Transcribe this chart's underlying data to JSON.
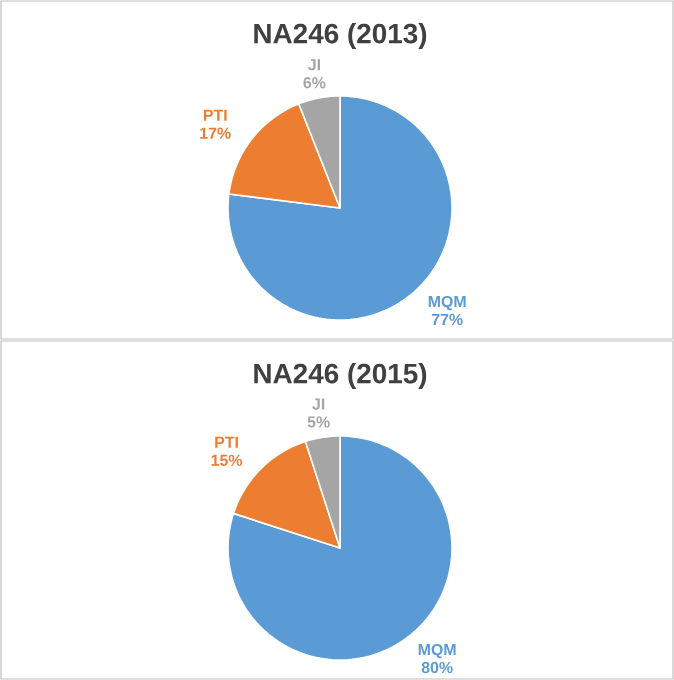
{
  "chart_data": [
    {
      "type": "pie",
      "title": "NA246 (2013)",
      "categories": [
        "MQM",
        "PTI",
        "JI"
      ],
      "values": [
        77,
        17,
        6
      ],
      "value_labels": [
        "77%",
        "17%",
        "6%"
      ],
      "colors": [
        "#5b9bd5",
        "#ed7d31",
        "#a5a5a5"
      ]
    },
    {
      "type": "pie",
      "title": "NA246 (2015)",
      "categories": [
        "MQM",
        "PTI",
        "JI"
      ],
      "values": [
        80,
        15,
        5
      ],
      "value_labels": [
        "80%",
        "15%",
        "5%"
      ],
      "colors": [
        "#5b9bd5",
        "#ed7d31",
        "#a5a5a5"
      ]
    }
  ]
}
